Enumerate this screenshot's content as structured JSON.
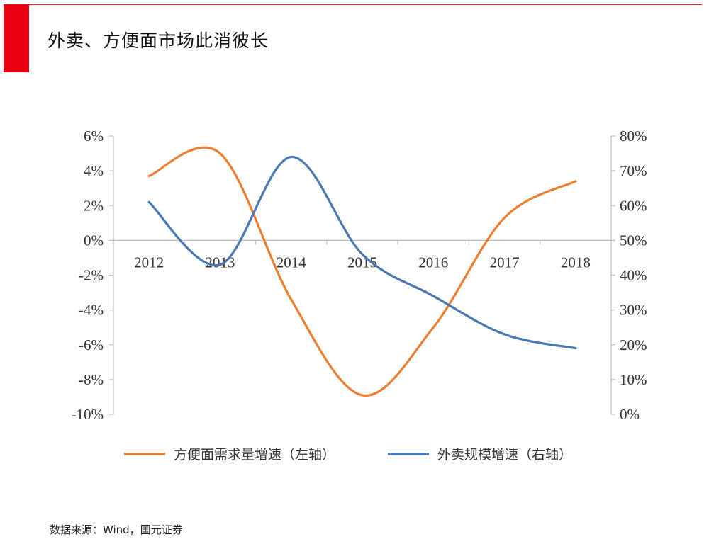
{
  "header": {
    "title": "外卖、方便面市场此消彼长"
  },
  "footer": {
    "source": "数据来源：Wind，国元证券"
  },
  "colors": {
    "accent": "#e60012",
    "series_orange": "#ed7d31",
    "series_blue": "#4a78b3",
    "axis": "#bfbfbf"
  },
  "chart_data": {
    "type": "line",
    "title": "",
    "smooth": true,
    "categories": [
      "2012",
      "2013",
      "2014",
      "2015",
      "2016",
      "2017",
      "2018"
    ],
    "y_left": {
      "ylim": [
        -10,
        6
      ],
      "ticks": [
        6,
        4,
        2,
        0,
        -2,
        -4,
        -6,
        -8,
        -10
      ],
      "tick_labels": [
        "6%",
        "4%",
        "2%",
        "0%",
        "-2%",
        "-4%",
        "-6%",
        "-8%",
        "-10%"
      ]
    },
    "y_right": {
      "ylim": [
        0,
        80
      ],
      "ticks": [
        80,
        70,
        60,
        50,
        40,
        30,
        20,
        10,
        0
      ],
      "tick_labels": [
        "80%",
        "70%",
        "60%",
        "50%",
        "40%",
        "30%",
        "20%",
        "10%",
        "0%"
      ]
    },
    "series": [
      {
        "name": "方便面需求量增速（左轴）",
        "axis": "left",
        "color": "#ed7d31",
        "values": [
          3.7,
          5.0,
          -3.4,
          -8.9,
          -5.0,
          1.3,
          3.4
        ]
      },
      {
        "name": "外卖规模增速（右轴）",
        "axis": "right",
        "color": "#4a78b3",
        "values": [
          61,
          43,
          74,
          46,
          34,
          23,
          19
        ]
      }
    ],
    "grid": false,
    "legend_position": "bottom"
  }
}
